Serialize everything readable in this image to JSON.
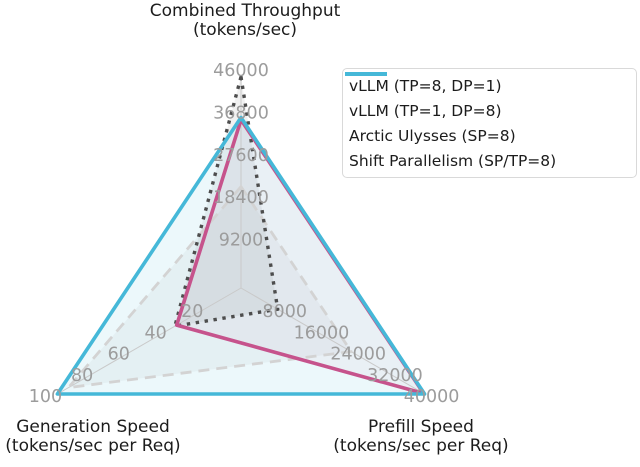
{
  "figure": {
    "background": "#ffffff"
  },
  "chart_data": {
    "type": "radar",
    "title": "",
    "grid": "spokes-only",
    "legend_position": "upper right",
    "tick_label_color": "#9c9c9c",
    "spoke_color": "#c9c9c9",
    "axes": [
      {
        "title_line1": "Combined Throughput",
        "title_line2": "(tokens/sec)",
        "min": 0,
        "max": 46000,
        "ticks": [
          9200,
          18400,
          27600,
          36800,
          46000
        ]
      },
      {
        "title_line1": "Generation Speed",
        "title_line2": "(tokens/sec per Req)",
        "min": 0,
        "max": 100,
        "ticks": [
          20,
          40,
          60,
          80,
          100
        ]
      },
      {
        "title_line1": "Prefill Speed",
        "title_line2": "(tokens/sec per Req)",
        "min": 0,
        "max": 40000,
        "ticks": [
          8000,
          16000,
          24000,
          32000,
          40000
        ]
      }
    ],
    "series": [
      {
        "label": "vLLM (TP=8, DP=1)",
        "values": [
          22000,
          94,
          24000
        ],
        "color": "#d3d3d3",
        "line_style": "dashed",
        "fill_opacity": 0.18
      },
      {
        "label": "vLLM (TP=1, DP=8)",
        "values": [
          45800,
          36,
          8000
        ],
        "color": "#4d4d4d",
        "line_style": "dotted",
        "fill_opacity": 0.08
      },
      {
        "label": "Arctic Ulysses (SP=8)",
        "values": [
          36500,
          35,
          39800
        ],
        "color": "#c6538c",
        "line_style": "solid",
        "fill_opacity": 0.05
      },
      {
        "label": "Shift Parallelism (SP/TP=8)",
        "values": [
          37000,
          100,
          40000
        ],
        "color": "#45b8d8",
        "line_style": "solid",
        "fill_opacity": 0.1
      }
    ]
  }
}
